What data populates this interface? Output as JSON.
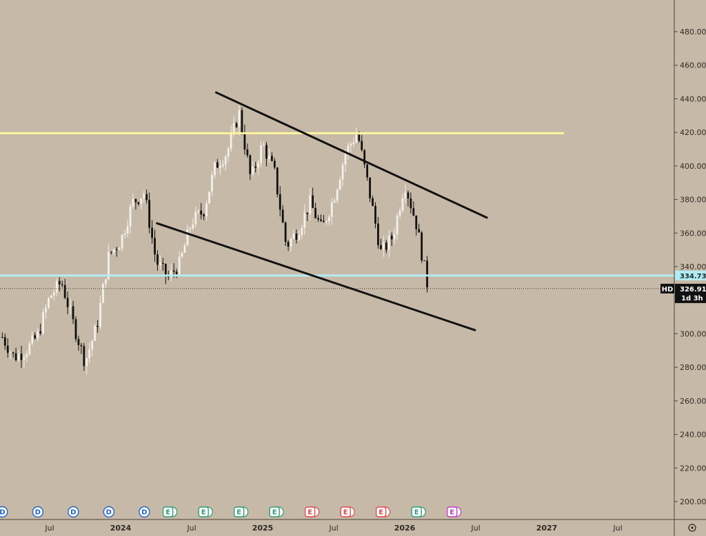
{
  "chart_data": {
    "type": "candlestick",
    "symbol": "HD",
    "last_price": "326.91",
    "countdown": "1d 3h",
    "price_line_label": "334.73",
    "ylim": [
      190,
      490
    ],
    "y_ticks": [
      "480.00",
      "460.00",
      "440.00",
      "420.00",
      "400.00",
      "380.00",
      "360.00",
      "340.00",
      "300.00",
      "280.00",
      "260.00",
      "240.00",
      "220.00",
      "200.00"
    ],
    "x_ticks": [
      "Jul",
      "2024",
      "Jul",
      "2025",
      "Jul",
      "2026",
      "Jul",
      "2027",
      "Jul"
    ],
    "x_range": [
      "2023-03",
      "2027-09"
    ],
    "lines": {
      "resistance_horizontal": {
        "price": 419.5,
        "color": "#fff59d"
      },
      "support_horizontal": {
        "price": 334.7,
        "color": "#b2ebf2"
      },
      "channel_upper": {
        "from": [
          "2024-09",
          444
        ],
        "to": [
          "2026-08",
          369
        ]
      },
      "channel_lower": {
        "from": [
          "2024-04",
          366
        ],
        "to": [
          "2026-07",
          302
        ]
      },
      "last_price_dotted": {
        "price": 326.9
      }
    },
    "candles_close_path": [
      {
        "d": "2023-03",
        "c": 298
      },
      {
        "d": "2023-04",
        "c": 286
      },
      {
        "d": "2023-05",
        "c": 290
      },
      {
        "d": "2023-06",
        "c": 299
      },
      {
        "d": "2023-07",
        "c": 322
      },
      {
        "d": "2023-08",
        "c": 331
      },
      {
        "d": "2023-09",
        "c": 306
      },
      {
        "d": "2023-10",
        "c": 283
      },
      {
        "d": "2023-11",
        "c": 305
      },
      {
        "d": "2023-12",
        "c": 347
      },
      {
        "d": "2024-01",
        "c": 355
      },
      {
        "d": "2024-02",
        "c": 378
      },
      {
        "d": "2024-03",
        "c": 384
      },
      {
        "d": "2024-04",
        "c": 343
      },
      {
        "d": "2024-05",
        "c": 333
      },
      {
        "d": "2024-06",
        "c": 342
      },
      {
        "d": "2024-07",
        "c": 367
      },
      {
        "d": "2024-08",
        "c": 373
      },
      {
        "d": "2024-09",
        "c": 400
      },
      {
        "d": "2024-10",
        "c": 408
      },
      {
        "d": "2024-11",
        "c": 432
      },
      {
        "d": "2024-12",
        "c": 392
      },
      {
        "d": "2025-01",
        "c": 413
      },
      {
        "d": "2025-02",
        "c": 396
      },
      {
        "d": "2025-03",
        "c": 352
      },
      {
        "d": "2025-04",
        "c": 362
      },
      {
        "d": "2025-05",
        "c": 378
      },
      {
        "d": "2025-06",
        "c": 362
      },
      {
        "d": "2025-07",
        "c": 381
      },
      {
        "d": "2025-08",
        "c": 408
      },
      {
        "d": "2025-09",
        "c": 420
      },
      {
        "d": "2025-10",
        "c": 385
      },
      {
        "d": "2025-11",
        "c": 348
      },
      {
        "d": "2025-12",
        "c": 358
      },
      {
        "d": "2026-01",
        "c": 390
      },
      {
        "d": "2026-02",
        "c": 365
      },
      {
        "d": "2026-03",
        "c": 326
      }
    ],
    "events": [
      {
        "d": "2023-03",
        "label": "D",
        "color": "#1e63c7"
      },
      {
        "d": "2023-06",
        "label": "D",
        "color": "#1e63c7"
      },
      {
        "d": "2023-09",
        "label": "D",
        "color": "#1e63c7"
      },
      {
        "d": "2023-12",
        "label": "D",
        "color": "#1e63c7"
      },
      {
        "d": "2024-03",
        "label": "D",
        "color": "#1e63c7"
      },
      {
        "d": "2024-05",
        "label": "E",
        "color": "#2e9b73"
      },
      {
        "d": "2024-08",
        "label": "E",
        "color": "#2e9b73"
      },
      {
        "d": "2024-11",
        "label": "E",
        "color": "#2e9b73"
      },
      {
        "d": "2025-02",
        "label": "E",
        "color": "#2e9b73"
      },
      {
        "d": "2025-05",
        "label": "E",
        "color": "#e04848"
      },
      {
        "d": "2025-08",
        "label": "E",
        "color": "#e04848"
      },
      {
        "d": "2025-11",
        "label": "E",
        "color": "#e04848"
      },
      {
        "d": "2026-02",
        "label": "E",
        "color": "#2e9b73"
      },
      {
        "d": "2026-05",
        "label": "E",
        "color": "#c43ac9"
      }
    ]
  }
}
